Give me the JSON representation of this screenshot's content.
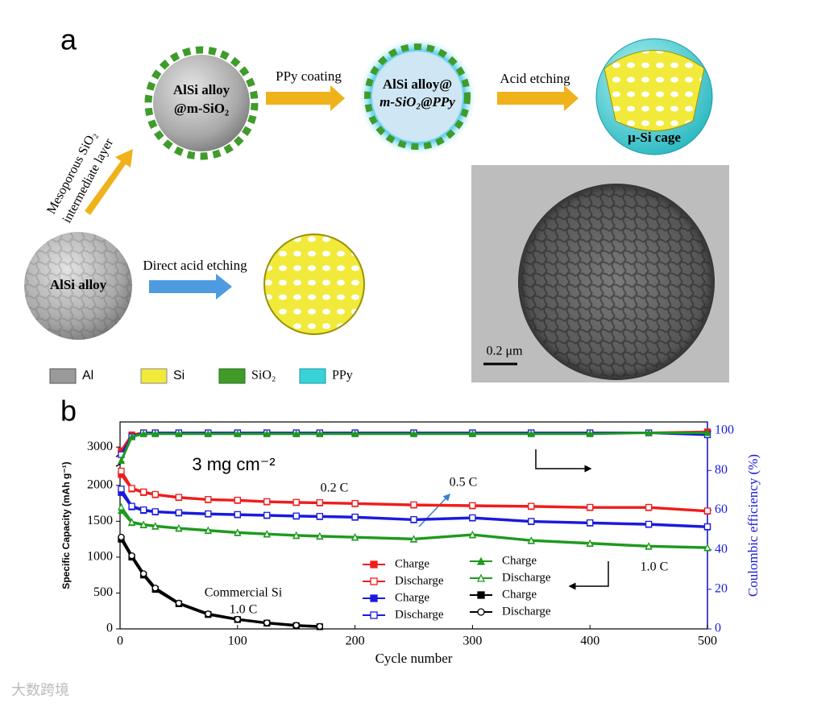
{
  "panel_a": {
    "label": "a",
    "sphere_coated": [
      "AlSi alloy",
      "@m-SiO₂"
    ],
    "step_ppy": "PPy coating",
    "sphere_ppy": [
      "AlSi alloy@",
      "m-SiO₂@PPy"
    ],
    "step_etch": "Acid etching",
    "cage": "μ-Si cage",
    "step_meso": [
      "Mesoporous SiO₂",
      "intermediate layer"
    ],
    "sphere_alsi": "AlSi alloy",
    "step_direct": "Direct acid etching",
    "legend": [
      "Al",
      "Si",
      "SiO₂",
      "PPy"
    ],
    "scale_bar": "0.2 μm"
  },
  "panel_b_label": "b",
  "chart_data": {
    "type": "line",
    "xlabel": "Cycle number",
    "ylabel": "Specific Capacity (mAh g⁻¹)",
    "y2label": "Coulombic efficiency (%)",
    "xlim": [
      0,
      500
    ],
    "xticks": [
      0,
      100,
      200,
      300,
      400,
      500
    ],
    "ylim": [
      0,
      3350
    ],
    "ybreak": [
      2300,
      2900
    ],
    "yticks": [
      0,
      500,
      1000,
      1500,
      2000,
      3000
    ],
    "y2lim": [
      0,
      104.5
    ],
    "y2ticks": [
      0,
      20,
      40,
      60,
      80,
      100
    ],
    "y2color": "#1a1adc",
    "annotations": [
      "3 mg cm⁻²",
      "0.2 C",
      "0.5 C",
      "1.0 C",
      "Commercial Si",
      "1.0 C"
    ],
    "x": [
      1,
      10,
      20,
      30,
      50,
      75,
      100,
      125,
      150,
      170,
      200,
      250,
      300,
      350,
      400,
      450,
      500
    ],
    "series": [
      {
        "name": "Charge",
        "color": "#f01c1c",
        "marker": "square",
        "values": [
          2150,
          1950,
          1900,
          1870,
          1830,
          1800,
          1790,
          1770,
          1760,
          1755,
          1745,
          1725,
          1715,
          1705,
          1690,
          1690,
          1640
        ]
      },
      {
        "name": "Discharge",
        "color": "#f01c1c",
        "marker": "open-square",
        "values": [
          2200,
          1960,
          1910,
          1875,
          1835,
          1805,
          1795,
          1775,
          1765,
          1760,
          1750,
          1730,
          1720,
          1710,
          1695,
          1695,
          1645
        ]
      },
      {
        "name": "Charge",
        "color": "#1a1adc",
        "marker": "square",
        "values": [
          1900,
          1700,
          1650,
          1630,
          1615,
          1600,
          1590,
          1580,
          1570,
          1565,
          1555,
          1520,
          1545,
          1495,
          1475,
          1455,
          1420
        ]
      },
      {
        "name": "Discharge",
        "color": "#1a1adc",
        "marker": "open-square",
        "values": [
          1950,
          1710,
          1660,
          1635,
          1620,
          1605,
          1595,
          1585,
          1575,
          1570,
          1560,
          1525,
          1550,
          1500,
          1480,
          1460,
          1425
        ]
      },
      {
        "name": "Charge",
        "color": "#1e9a1e",
        "marker": "triangle",
        "values": [
          1650,
          1480,
          1450,
          1430,
          1400,
          1370,
          1340,
          1320,
          1300,
          1290,
          1275,
          1250,
          1310,
          1230,
          1190,
          1150,
          1130
        ]
      },
      {
        "name": "Discharge",
        "color": "#1e9a1e",
        "marker": "open-triangle",
        "values": [
          1700,
          1490,
          1455,
          1435,
          1405,
          1375,
          1345,
          1325,
          1305,
          1295,
          1280,
          1255,
          1315,
          1235,
          1195,
          1155,
          1135
        ]
      },
      {
        "name": "Charge",
        "color": "#000000",
        "marker": "square",
        "values": [
          1250,
          1000,
          750,
          550,
          350,
          200,
          130,
          80,
          45,
          30,
          null,
          null,
          null,
          null,
          null,
          null,
          null
        ]
      },
      {
        "name": "Discharge",
        "color": "#000000",
        "marker": "open-circle",
        "values": [
          1280,
          1020,
          770,
          570,
          360,
          210,
          135,
          85,
          50,
          35,
          null,
          null,
          null,
          null,
          null,
          null,
          null
        ]
      },
      {
        "axis": "y2",
        "color": "#f01c1c",
        "marker": "square",
        "values": [
          90,
          98,
          99,
          99,
          99,
          99,
          99,
          99,
          99,
          99,
          99,
          99,
          99,
          99,
          99,
          99,
          99.5
        ]
      },
      {
        "axis": "y2",
        "color": "#1a1adc",
        "marker": "open-square",
        "values": [
          88,
          97,
          99,
          99,
          99,
          99,
          99,
          99,
          99,
          99,
          99,
          99,
          99,
          99,
          99,
          99,
          98
        ]
      },
      {
        "axis": "y2",
        "color": "#1e9a1e",
        "marker": "triangle",
        "values": [
          85,
          97,
          98.5,
          98.5,
          98.5,
          98.5,
          98.5,
          98.5,
          98.5,
          98.5,
          98.5,
          98.5,
          98.5,
          98.5,
          98.5,
          99,
          99
        ]
      }
    ]
  },
  "watermark": "大数跨境"
}
